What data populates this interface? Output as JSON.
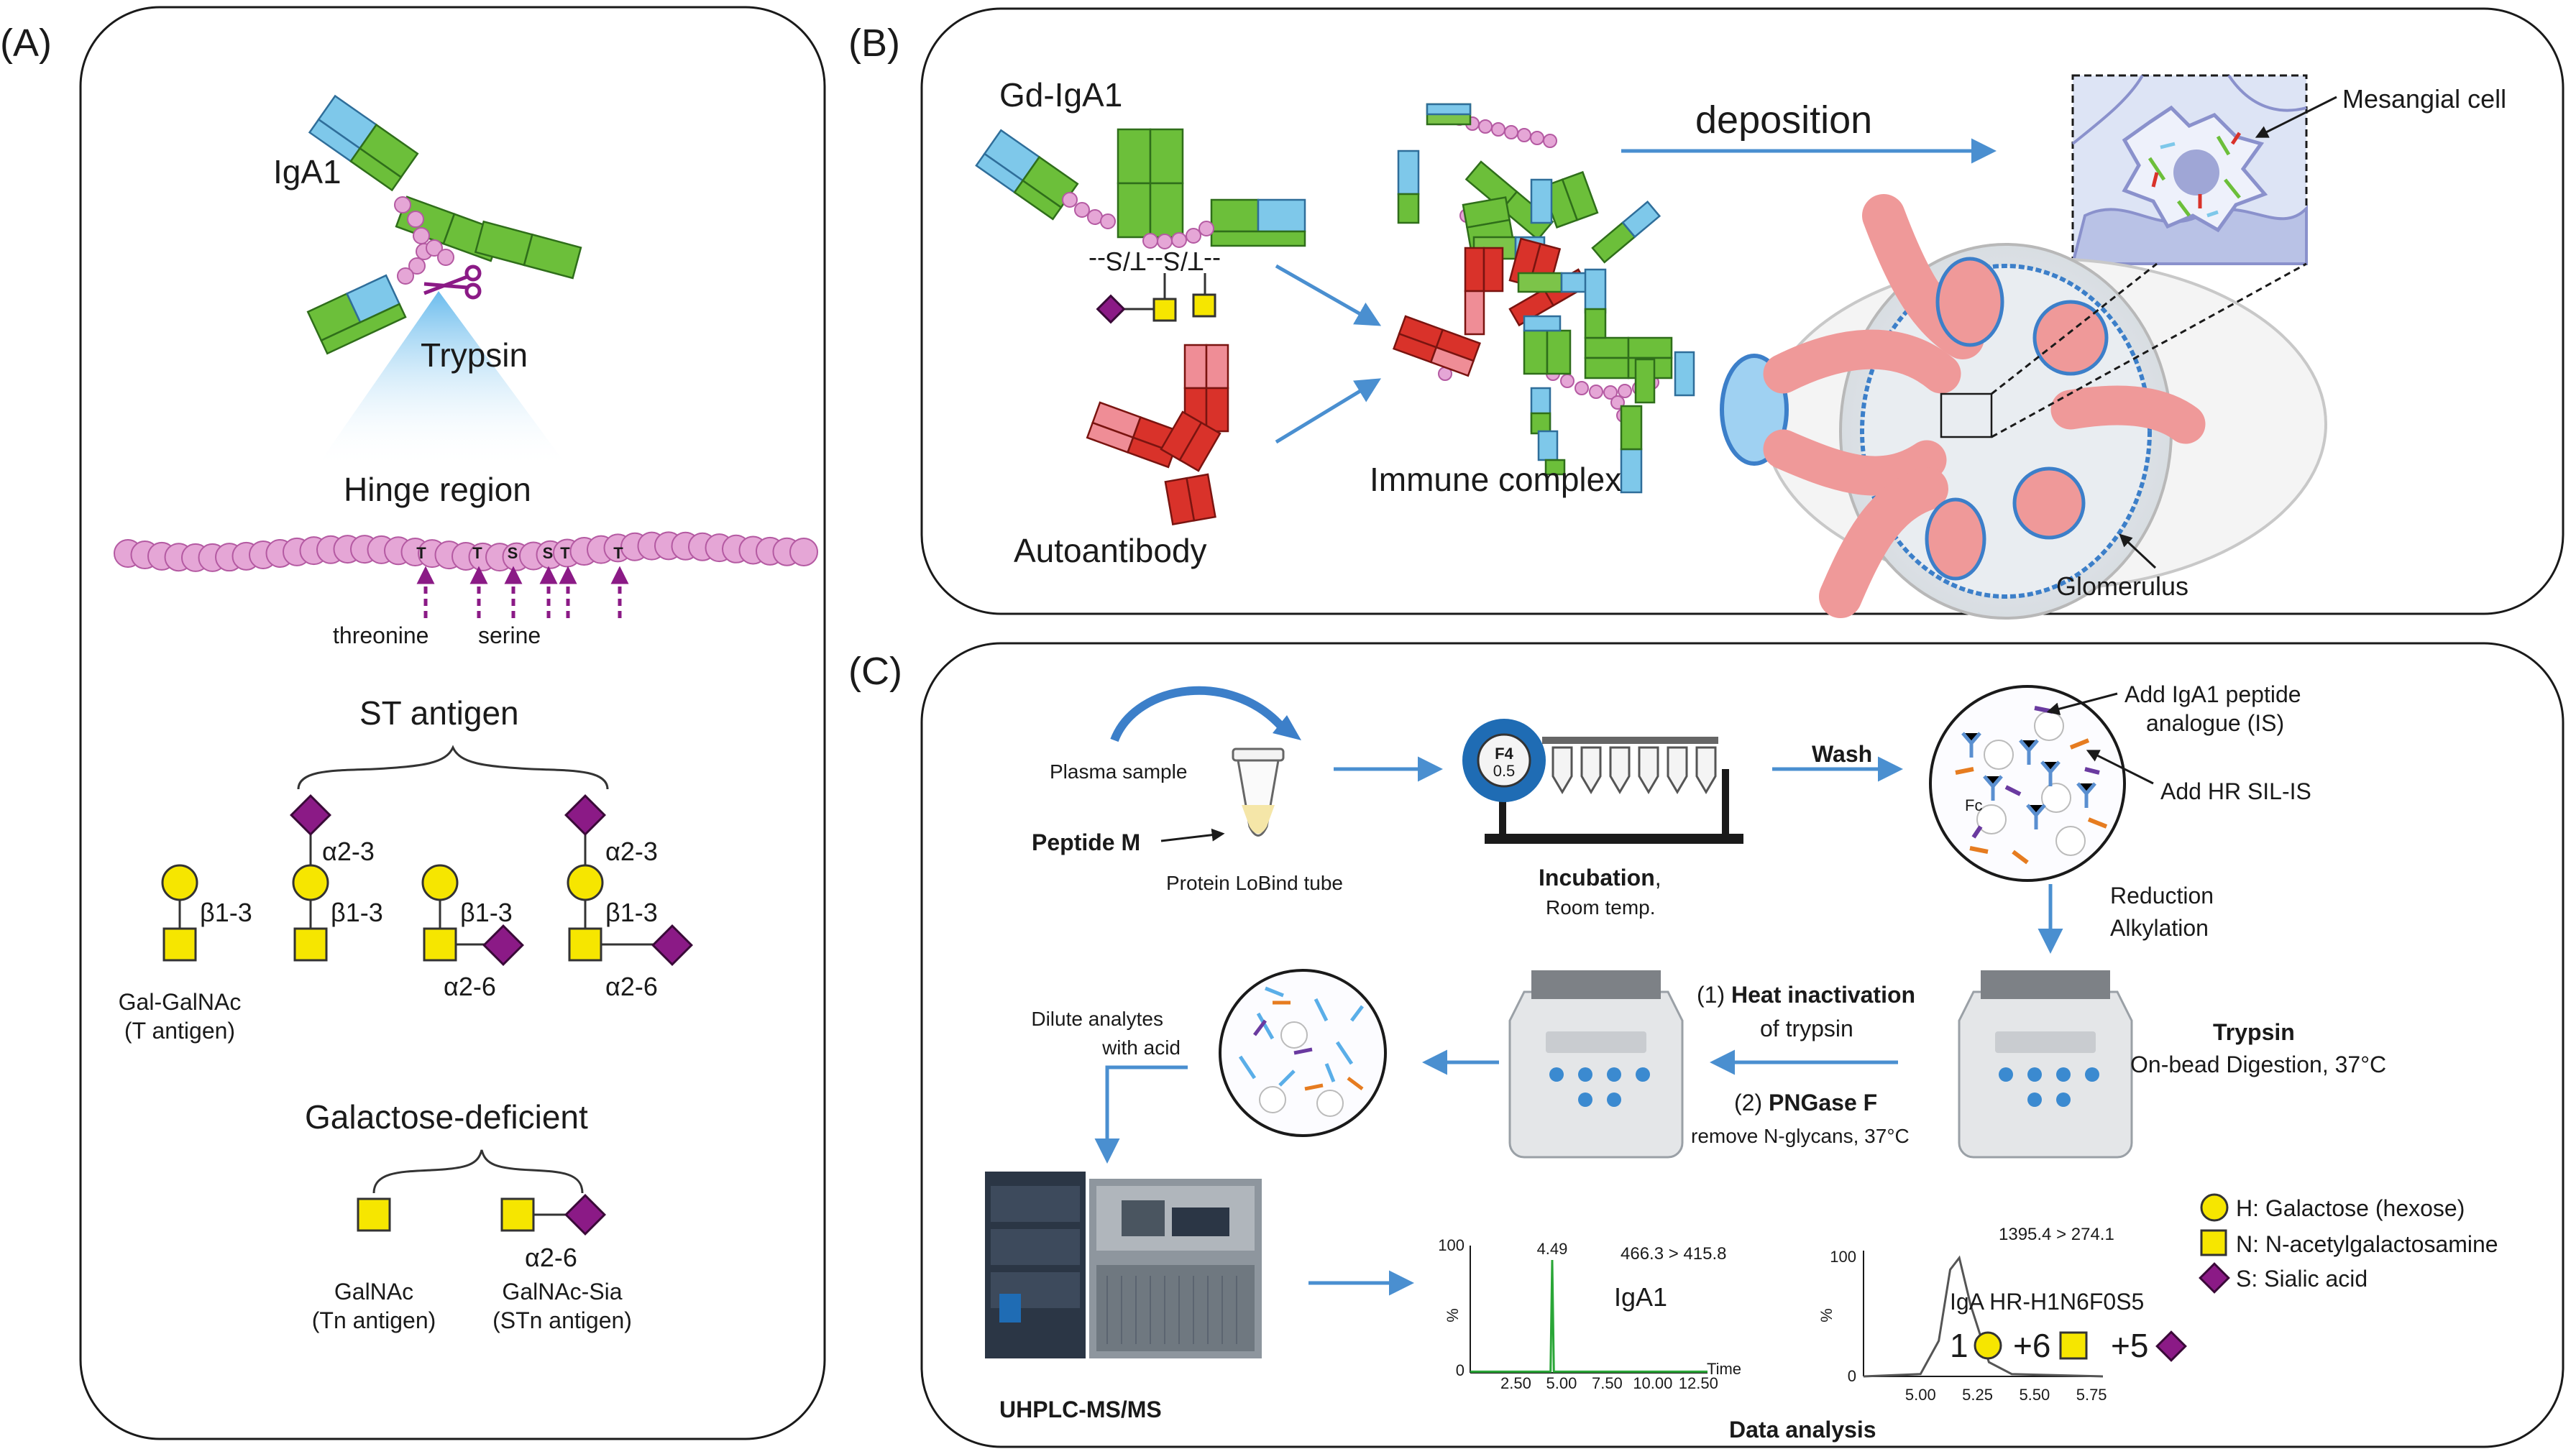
{
  "panels": {
    "a": {
      "label": "(A)",
      "iga1": "IgA1",
      "trypsin": "Trypsin",
      "hinge_region": "Hinge region",
      "hinge_residues": [
        "T",
        "T",
        "S",
        "S",
        "T",
        "T"
      ],
      "threonine": "threonine",
      "serine": "serine",
      "st_antigen": "ST antigen",
      "beta13": "β1-3",
      "alpha23": "α2-3",
      "alpha26": "α2-6",
      "gal_galnac": "Gal-GalNAc",
      "t_antigen": "(T antigen)",
      "galactose_deficient": "Galactose-deficient",
      "galnac": "GalNAc",
      "tn_antigen": "(Tn antigen)",
      "galnac_sia": "GalNAc-Sia",
      "stn_antigen": "(STn antigen)"
    },
    "b": {
      "label": "(B)",
      "gd_iga1": "Gd-IgA1",
      "sts": "--T/S--T/S--",
      "deposition": "deposition",
      "mesangial_cell": "Mesangial cell",
      "immune_complex": "Immune complex",
      "autoantibody": "Autoantibody",
      "glomerulus": "Glomerulus"
    },
    "c": {
      "label": "(C)",
      "plasma_sample": "Plasma sample",
      "peptide_m": "Peptide M",
      "protein_lobind": "Protein LoBind tube",
      "rotor_label": "F4",
      "rotor_value": "0.5",
      "incubation": "Incubation",
      "incubation_suffix": ",",
      "room_temp": "Room temp.",
      "wash": "Wash",
      "add_iga1_line1": "Add IgA1 peptide",
      "add_iga1_line2": "analogue (IS)",
      "add_hr": "Add HR SIL-IS",
      "fc": "Fc",
      "reduction": "Reduction",
      "alkylation": "Alkylation",
      "trypsin": "Trypsin",
      "on_bead": "On-bead Digestion, 37°C",
      "heat_num": "(1)",
      "heat_inactivation": "Heat inactivation",
      "of_trypsin": "of trypsin",
      "pngase_num": "(2)",
      "pngase": "PNGase F",
      "remove_nglycans": "remove N-glycans, 37°C",
      "dilute_line1": "Dilute analytes",
      "dilute_line2": "with acid",
      "uhplc": "UHPLC-MS/MS",
      "data_analysis": "Data analysis",
      "legend": [
        {
          "shape": "circle",
          "text": "H: Galactose (hexose)"
        },
        {
          "shape": "square",
          "text": "N: N-acetylgalactosamine"
        },
        {
          "shape": "diamond",
          "text": "S: Sialic acid"
        }
      ]
    }
  },
  "chart_data": [
    {
      "type": "line",
      "title": "IgA1",
      "transition": "466.3 > 415.8",
      "peak_label": "4.49",
      "x_ticks": [
        "2.50",
        "5.00",
        "7.50",
        "10.00",
        "12.50"
      ],
      "xlabel": "Time",
      "ylabel": "%",
      "y_top": "100",
      "y_zero": "0",
      "xlim": [
        0,
        13
      ],
      "ylim": [
        0,
        100
      ],
      "series": [
        {
          "name": "IgA1",
          "x": [
            0,
            4.4,
            4.49,
            4.58,
            13
          ],
          "y": [
            1,
            1,
            100,
            1,
            1
          ]
        }
      ]
    },
    {
      "type": "line",
      "title": "IgA HR-H1N6F0S5",
      "transition": "1395.4 > 274.1",
      "x_ticks": [
        "5.00",
        "5.25",
        "5.50",
        "5.75"
      ],
      "ylabel": "%",
      "y_top": "100",
      "y_zero": "0",
      "xlim": [
        4.75,
        5.8
      ],
      "ylim": [
        0,
        100
      ],
      "composition": [
        "1",
        "+6",
        "+5"
      ],
      "series": [
        {
          "name": "HR-H1N6F0S5",
          "x": [
            4.75,
            5.0,
            5.08,
            5.13,
            5.17,
            5.22,
            5.3,
            5.4,
            5.8
          ],
          "y": [
            0,
            2,
            30,
            90,
            100,
            60,
            12,
            2,
            0
          ]
        }
      ]
    }
  ]
}
